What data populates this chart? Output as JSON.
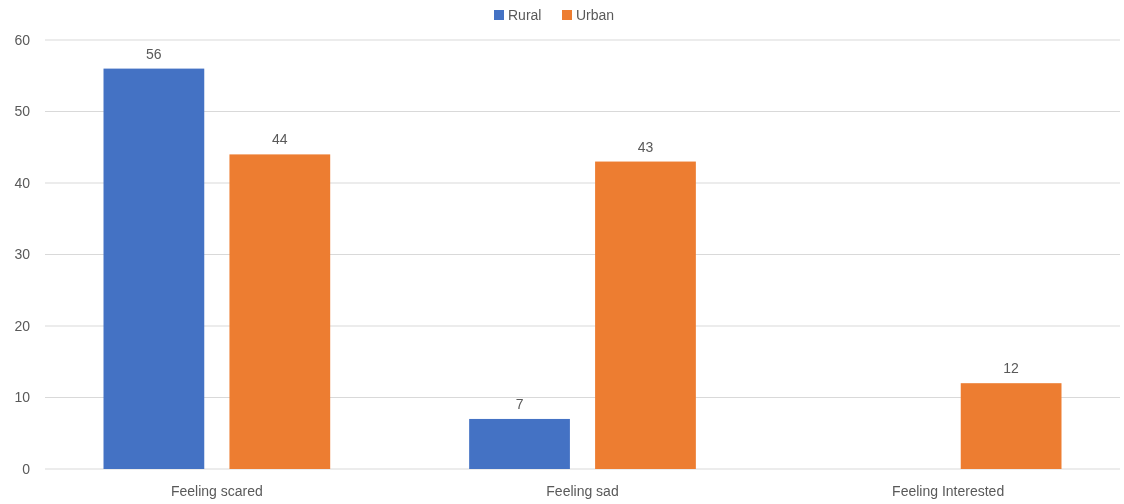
{
  "chart_data": {
    "type": "bar",
    "categories": [
      "Feeling scared",
      "Feeling sad",
      "Feeling Interested"
    ],
    "series": [
      {
        "name": "Rural",
        "color": "#4472c4",
        "values": [
          56,
          7,
          null
        ]
      },
      {
        "name": "Urban",
        "color": "#ed7d31",
        "values": [
          44,
          43,
          12
        ]
      }
    ],
    "ylim": [
      0,
      60
    ],
    "yticks": [
      0,
      10,
      20,
      30,
      40,
      50,
      60
    ],
    "grid": "y",
    "legend": "top",
    "data_labels": true
  }
}
